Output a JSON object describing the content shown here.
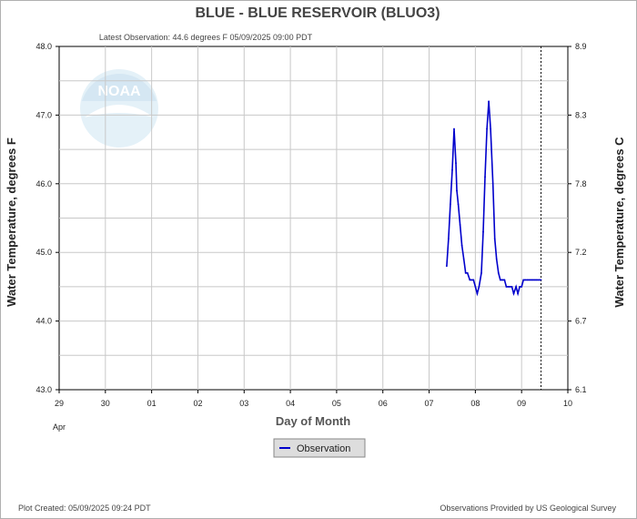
{
  "header": {
    "title": "BLUE - BLUE RESERVOIR  (BLUO3)",
    "latest_observation": "Latest Observation: 44.6 degrees F  05/09/2025 09:00 PDT"
  },
  "footer": {
    "plot_created": "Plot Created: 05/09/2025 09:24 PDT",
    "provider": "Observations Provided by US Geological Survey"
  },
  "logo": {
    "text": "NOAA"
  },
  "legend": {
    "label": "Observation"
  },
  "colors": {
    "series": "#0000cc",
    "grid": "#c8c8c8",
    "axis": "#000000"
  },
  "chart_data": {
    "type": "line",
    "xlabel": "Day of Month",
    "ylabel_left": "Water Temperature, degrees F",
    "ylabel_right": "Water Temperature, degrees C",
    "x_month_label": "Apr",
    "x_tick_labels": [
      "29",
      "30",
      "01",
      "02",
      "03",
      "04",
      "05",
      "06",
      "07",
      "08",
      "09",
      "10"
    ],
    "xlim": [
      0,
      11
    ],
    "ylim": [
      43.0,
      48.0
    ],
    "y_tick_labels_left": [
      "48.0",
      "47.0",
      "46.0",
      "45.0",
      "44.0",
      "43.0"
    ],
    "y_tick_values_left": [
      48.0,
      47.0,
      46.0,
      45.0,
      44.0,
      43.0
    ],
    "y_tick_labels_right": [
      "8.9",
      "8.3",
      "7.8",
      "7.2",
      "6.7",
      "6.1"
    ],
    "latest_observation_x": 10.42,
    "grid": true,
    "series": [
      {
        "name": "Observation",
        "x": [
          8.38,
          8.42,
          8.46,
          8.5,
          8.54,
          8.58,
          8.6,
          8.63,
          8.67,
          8.71,
          8.75,
          8.79,
          8.83,
          8.88,
          8.92,
          8.96,
          9.0,
          9.04,
          9.08,
          9.13,
          9.17,
          9.21,
          9.25,
          9.29,
          9.33,
          9.38,
          9.42,
          9.46,
          9.5,
          9.54,
          9.56,
          9.58,
          9.6,
          9.63,
          9.67,
          9.71,
          9.75,
          9.79,
          9.83,
          9.88,
          9.92,
          9.96,
          10.0,
          10.04,
          10.08,
          10.13,
          10.17,
          10.21,
          10.25,
          10.29,
          10.33,
          10.38,
          10.42
        ],
        "y": [
          44.8,
          45.2,
          45.7,
          46.2,
          46.8,
          46.3,
          45.9,
          45.7,
          45.4,
          45.1,
          44.9,
          44.7,
          44.7,
          44.6,
          44.6,
          44.6,
          44.5,
          44.4,
          44.5,
          44.7,
          45.3,
          46.1,
          46.8,
          47.2,
          46.8,
          46.0,
          45.2,
          44.9,
          44.7,
          44.6,
          44.6,
          44.6,
          44.6,
          44.6,
          44.5,
          44.5,
          44.5,
          44.5,
          44.4,
          44.5,
          44.4,
          44.5,
          44.5,
          44.6,
          44.6,
          44.6,
          44.6,
          44.6,
          44.6,
          44.6,
          44.6,
          44.6,
          44.6
        ]
      }
    ]
  }
}
